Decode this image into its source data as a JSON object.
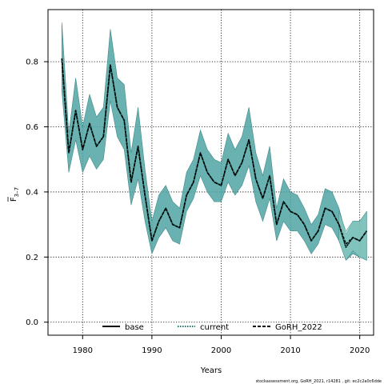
{
  "chart_data": {
    "type": "line",
    "xlabel": "Years",
    "ylabel_main": "F",
    "ylabel_sub": "3–7",
    "xlim": [
      1975,
      2022
    ],
    "ylim": [
      -0.04,
      0.96
    ],
    "xticks": [
      1980,
      1990,
      2000,
      2010,
      2020
    ],
    "yticks": [
      0.0,
      0.2,
      0.4,
      0.6,
      0.8
    ],
    "ytick_labels": [
      "0.0",
      "0.2",
      "0.4",
      "0.6",
      "0.8"
    ],
    "grid": true,
    "legend_position": "bottom-center",
    "colors": {
      "band": "#4fa5a3",
      "band_edge": "#3f8a88",
      "ext_band": "#8fd0c4",
      "line": "#000000",
      "line_dash_alt": "#1f7a6e"
    },
    "years": [
      1977,
      1978,
      1979,
      1980,
      1981,
      1982,
      1983,
      1984,
      1985,
      1986,
      1987,
      1988,
      1989,
      1990,
      1991,
      1992,
      1993,
      1994,
      1995,
      1996,
      1997,
      1998,
      1999,
      2000,
      2001,
      2002,
      2003,
      2004,
      2005,
      2006,
      2007,
      2008,
      2009,
      2010,
      2011,
      2012,
      2013,
      2014,
      2015,
      2016,
      2017,
      2018,
      2019,
      2020,
      2021
    ],
    "upper": [
      0.92,
      0.58,
      0.75,
      0.6,
      0.7,
      0.63,
      0.66,
      0.9,
      0.75,
      0.73,
      0.52,
      0.66,
      0.47,
      0.31,
      0.39,
      0.42,
      0.37,
      0.35,
      0.46,
      0.5,
      0.59,
      0.53,
      0.5,
      0.49,
      0.58,
      0.53,
      0.57,
      0.66,
      0.52,
      0.45,
      0.54,
      0.35,
      0.44,
      0.4,
      0.39,
      0.35,
      0.3,
      0.33,
      0.41,
      0.4,
      0.35,
      0.27,
      0.31,
      0.31,
      0.34
    ],
    "lower": [
      0.71,
      0.46,
      0.56,
      0.46,
      0.51,
      0.47,
      0.5,
      0.68,
      0.57,
      0.53,
      0.36,
      0.44,
      0.31,
      0.21,
      0.26,
      0.29,
      0.25,
      0.24,
      0.34,
      0.38,
      0.45,
      0.4,
      0.37,
      0.37,
      0.43,
      0.39,
      0.42,
      0.48,
      0.37,
      0.31,
      0.38,
      0.25,
      0.31,
      0.28,
      0.28,
      0.25,
      0.21,
      0.24,
      0.3,
      0.29,
      0.25,
      0.19,
      0.21,
      0.2,
      0.19
    ],
    "ext_band_years": [
      2017,
      2018,
      2019,
      2020,
      2021
    ],
    "ext_upper": [
      0.34,
      0.28,
      0.31,
      0.31,
      0.34
    ],
    "ext_lower": [
      0.25,
      0.19,
      0.22,
      0.2,
      0.19
    ],
    "series": [
      {
        "name": "base",
        "style": "solid",
        "values": [
          0.81,
          0.52,
          0.65,
          0.53,
          0.61,
          0.54,
          0.57,
          0.79,
          0.66,
          0.62,
          0.43,
          0.54,
          0.39,
          0.25,
          0.31,
          0.35,
          0.3,
          0.29,
          0.39,
          0.43,
          0.52,
          0.46,
          0.43,
          0.42,
          0.5,
          0.45,
          0.49,
          0.56,
          0.44,
          0.38,
          0.45,
          0.3,
          0.37,
          0.34,
          0.33,
          0.3,
          0.25,
          0.28,
          0.35,
          0.34,
          0.3,
          0.23,
          0.26,
          0.25,
          0.28
        ]
      },
      {
        "name": "current",
        "style": "dotted",
        "values": [
          0.81,
          0.52,
          0.65,
          0.53,
          0.61,
          0.54,
          0.57,
          0.79,
          0.66,
          0.62,
          0.43,
          0.54,
          0.39,
          0.25,
          0.31,
          0.35,
          0.3,
          0.29,
          0.39,
          0.43,
          0.52,
          0.46,
          0.43,
          0.42,
          0.5,
          0.45,
          0.49,
          0.56,
          0.44,
          0.38,
          0.45,
          0.3,
          0.37,
          0.34,
          0.33,
          0.3,
          0.25,
          0.28,
          0.35,
          0.34,
          0.3,
          0.23,
          0.26,
          0.25,
          0.28
        ]
      },
      {
        "name": "GoRH_2022",
        "style": "dashed",
        "values": [
          0.81,
          0.52,
          0.65,
          0.53,
          0.61,
          0.54,
          0.57,
          0.79,
          0.66,
          0.62,
          0.43,
          0.54,
          0.39,
          0.25,
          0.31,
          0.35,
          0.3,
          0.29,
          0.39,
          0.43,
          0.52,
          0.46,
          0.43,
          0.42,
          0.5,
          0.45,
          0.49,
          0.56,
          0.44,
          0.38,
          0.45,
          0.3,
          0.37,
          0.34,
          0.33,
          0.3,
          0.25,
          0.28,
          0.35,
          0.34,
          0.3,
          0.24,
          0.26,
          0.25,
          0.28
        ]
      }
    ]
  },
  "footer": "stockassessment.org, GoRH_2021, r14281 , git: ec2c2a0c6dde"
}
